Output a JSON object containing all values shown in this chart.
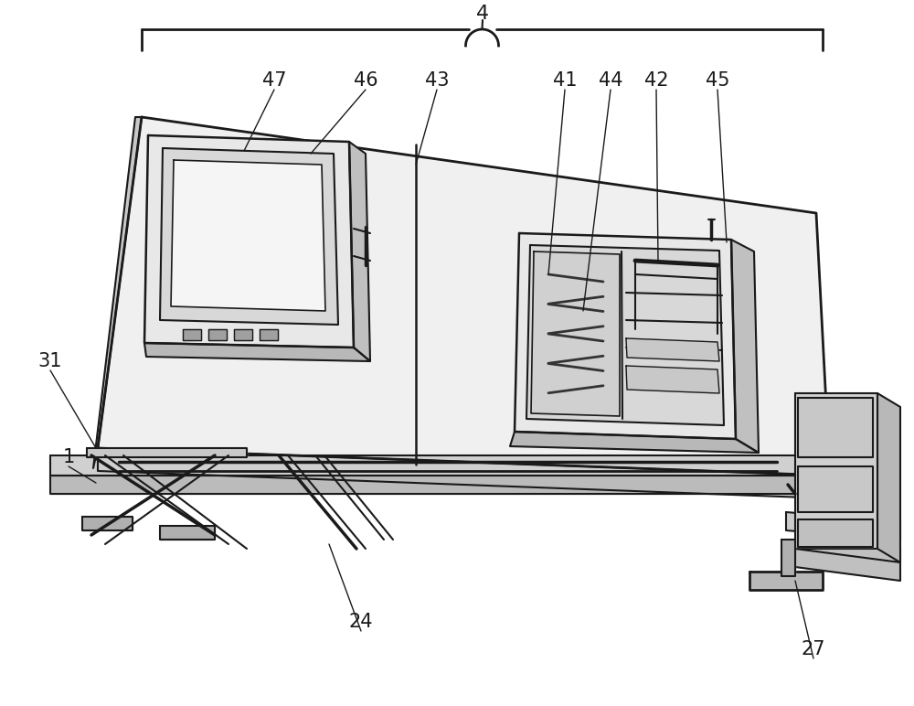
{
  "bg_color": "#ffffff",
  "line_color": "#1a1a1a",
  "lw": 1.5,
  "fig_width": 10.0,
  "fig_height": 7.72,
  "dpi": 100
}
